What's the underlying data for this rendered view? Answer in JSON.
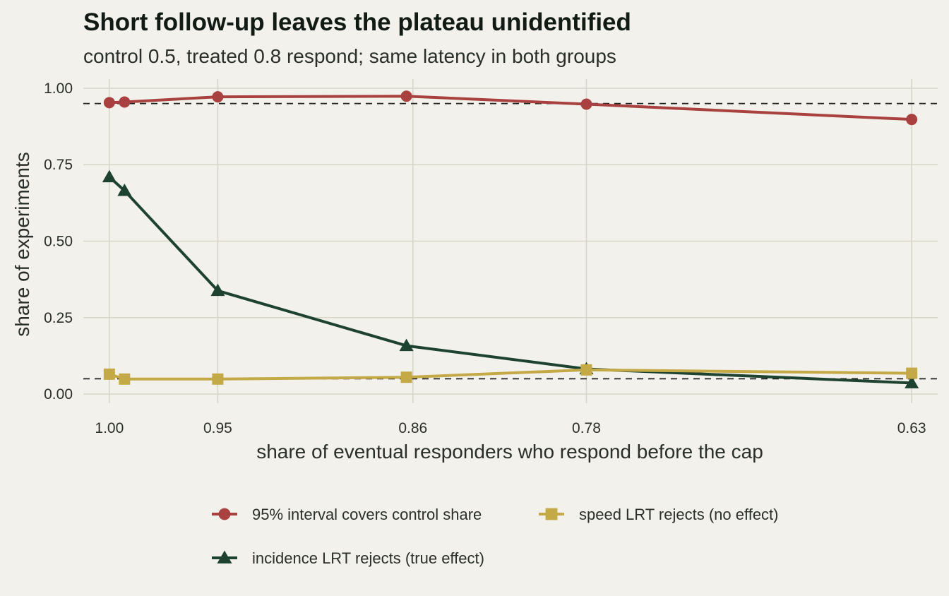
{
  "chart_data": {
    "type": "line",
    "title": "Short follow-up leaves the plateau unidentified",
    "subtitle": "control 0.5, treated 0.8 respond; same latency in both groups",
    "xlabel": "share of eventual responders who respond before the cap",
    "ylabel": "share of experiments",
    "x_axis_reversed": true,
    "xlim": [
      1.012,
      0.618
    ],
    "ylim": [
      -0.03,
      1.03
    ],
    "x_ticks": [
      {
        "value": 1.0,
        "label": "1.00"
      },
      {
        "value": 0.95,
        "label": "0.95"
      },
      {
        "value": 0.86,
        "label": "0.86"
      },
      {
        "value": 0.78,
        "label": "0.78"
      },
      {
        "value": 0.63,
        "label": "0.63"
      }
    ],
    "y_ticks": [
      {
        "value": 0.0,
        "label": "0.00"
      },
      {
        "value": 0.25,
        "label": "0.25"
      },
      {
        "value": 0.5,
        "label": "0.50"
      },
      {
        "value": 0.75,
        "label": "0.75"
      },
      {
        "value": 1.0,
        "label": "1.00"
      }
    ],
    "reference_lines": [
      0.95,
      0.05
    ],
    "grid": true,
    "legend_position": "bottom",
    "x": [
      1.0,
      0.993,
      0.95,
      0.863,
      0.78,
      0.63
    ],
    "series": [
      {
        "name": "95% interval covers control share",
        "marker": "circle",
        "color": "#a8413f",
        "values": [
          0.953,
          0.955,
          0.972,
          0.974,
          0.948,
          0.898
        ]
      },
      {
        "name": "speed LRT rejects (no effect)",
        "marker": "square",
        "color": "#c4a947",
        "values": [
          0.065,
          0.049,
          0.049,
          0.055,
          0.079,
          0.068
        ]
      },
      {
        "name": "incidence LRT rejects (true effect)",
        "marker": "triangle",
        "color": "#1e4230",
        "values": [
          0.71,
          0.665,
          0.338,
          0.158,
          0.082,
          0.036
        ]
      }
    ]
  }
}
